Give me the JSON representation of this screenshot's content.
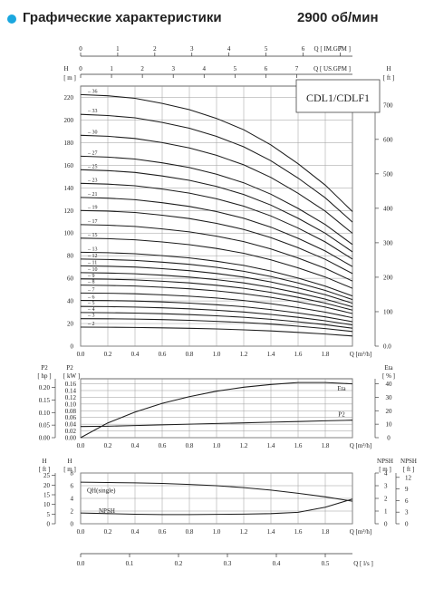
{
  "header": {
    "title": "Графические характеристики",
    "speed": "2900 об/мин",
    "bullet_color": "#1aa7df"
  },
  "model_label": "CDL1/CDLF1",
  "top_axes": {
    "im_gpm": {
      "label": "Q [ IM.GPM ]",
      "ticks": [
        "0",
        "1",
        "2",
        "3",
        "4",
        "5",
        "6",
        "7"
      ]
    },
    "us_gpm": {
      "label": "Q [ US.GPM ]",
      "ticks": [
        "0",
        "1",
        "2",
        "3",
        "4",
        "5",
        "6",
        "7"
      ]
    }
  },
  "bottom_axis": {
    "label": "Q [ l/s ]",
    "ticks": [
      "0.0",
      "0.1",
      "0.2",
      "0.3",
      "0.4",
      "0.5"
    ]
  },
  "chart_data": [
    {
      "type": "line",
      "title": "",
      "xlabel": "Q [m³/h]",
      "ylabel": "H [ m ]",
      "ylabel_right": "H [ ft ]",
      "x_ticks": [
        "0.0",
        "0.2",
        "0.4",
        "0.6",
        "0.8",
        "1.0",
        "1.2",
        "1.4",
        "1.6",
        "1.8",
        "Q [m³/h]"
      ],
      "y_ticks": [
        "0",
        "20",
        "40",
        "60",
        "80",
        "100",
        "120",
        "140",
        "160",
        "180",
        "200",
        "220"
      ],
      "y_ticks_right": [
        "0.0",
        "100",
        "200",
        "300",
        "400",
        "500",
        "600",
        "700"
      ],
      "xlim": [
        0,
        2.0
      ],
      "ylim": [
        0,
        230
      ],
      "grid": true,
      "x": [
        0,
        0.2,
        0.4,
        0.6,
        0.8,
        1.0,
        1.2,
        1.4,
        1.6,
        1.8,
        2.0
      ],
      "shape": [
        1.0,
        0.995,
        0.985,
        0.965,
        0.94,
        0.905,
        0.86,
        0.8,
        0.725,
        0.64,
        0.535
      ],
      "series": [
        {
          "name": "2",
          "h0": 16.8
        },
        {
          "name": "3",
          "h0": 24.3
        },
        {
          "name": "4",
          "h0": 29.7
        },
        {
          "name": "5",
          "h0": 35.1
        },
        {
          "name": "6",
          "h0": 40.5
        },
        {
          "name": "7",
          "h0": 47.0
        },
        {
          "name": "8",
          "h0": 54.0
        },
        {
          "name": "9",
          "h0": 59.5
        },
        {
          "name": "10",
          "h0": 65.0
        },
        {
          "name": "11",
          "h0": 71.0
        },
        {
          "name": "12",
          "h0": 77.0
        },
        {
          "name": "13",
          "h0": 83.0
        },
        {
          "name": "15",
          "h0": 95.5
        },
        {
          "name": "17",
          "h0": 107.5
        },
        {
          "name": "19",
          "h0": 120.0
        },
        {
          "name": "21",
          "h0": 131.5
        },
        {
          "name": "23",
          "h0": 144.0
        },
        {
          "name": "25",
          "h0": 156.0
        },
        {
          "name": "27",
          "h0": 168.0
        },
        {
          "name": "30",
          "h0": 186.5
        },
        {
          "name": "33",
          "h0": 205.0
        },
        {
          "name": "36",
          "h0": 222.5
        }
      ]
    },
    {
      "type": "line",
      "title": "",
      "xlabel": "Q [m³/h]",
      "ylabel": "P2 [ kW ]",
      "ylabel_left": "P2 [ hp ]",
      "ylabel_right": "Eta [ % ]",
      "x_ticks": [
        "0.0",
        "0.2",
        "0.4",
        "0.6",
        "0.8",
        "1.0",
        "1.2",
        "1.4",
        "1.6",
        "1.8",
        "Q [m³/h]"
      ],
      "y_ticks": [
        "0.00",
        "0.02",
        "0.04",
        "0.06",
        "0.08",
        "0.10",
        "0.12",
        "0.14",
        "0.16"
      ],
      "y_ticks_hp": [
        "0.00",
        "0.05",
        "0.10",
        "0.15",
        "0.20"
      ],
      "y_ticks_right": [
        "0",
        "10",
        "20",
        "30",
        "40"
      ],
      "xlim": [
        0,
        2.0
      ],
      "ylim": [
        0,
        0.175
      ],
      "grid": true,
      "x": [
        0,
        0.2,
        0.4,
        0.6,
        0.8,
        1.0,
        1.2,
        1.4,
        1.6,
        1.8,
        2.0
      ],
      "series": [
        {
          "name": "Eta",
          "axis": "right",
          "values": [
            0,
            11,
            19,
            25.5,
            30.5,
            34.5,
            37.5,
            39.5,
            41,
            41,
            40
          ]
        },
        {
          "name": "P2",
          "axis": "left",
          "values": [
            0.033,
            0.034,
            0.036,
            0.038,
            0.04,
            0.042,
            0.044,
            0.046,
            0.048,
            0.05,
            0.052
          ]
        }
      ]
    },
    {
      "type": "line",
      "title": "",
      "xlabel": "Q [m³/h]",
      "ylabel": "H [ m ]",
      "ylabel_left": "H [ ft ]",
      "ylabel_right": "NPSH [ m ]",
      "ylabel_right2": "NPSH [ ft ]",
      "x_ticks": [
        "0.0",
        "0.2",
        "0.4",
        "0.6",
        "0.8",
        "1.0",
        "1.2",
        "1.4",
        "1.6",
        "1.8",
        "Q [m³/h]"
      ],
      "y_ticks": [
        "0",
        "2",
        "4",
        "6",
        "8"
      ],
      "y_ticks_ft": [
        "0",
        "5",
        "10",
        "15",
        "20",
        "25"
      ],
      "y_ticks_right": [
        "0",
        "1",
        "2",
        "3",
        "4"
      ],
      "y_ticks_right2": [
        "0",
        "3",
        "6",
        "9",
        "12"
      ],
      "xlim": [
        0,
        2.0
      ],
      "ylim": [
        0,
        8
      ],
      "grid": true,
      "x": [
        0,
        0.2,
        0.4,
        0.6,
        0.8,
        1.0,
        1.2,
        1.4,
        1.6,
        1.8,
        2.0
      ],
      "series": [
        {
          "name": "QH(single)",
          "axis": "left",
          "values": [
            6.55,
            6.5,
            6.45,
            6.35,
            6.2,
            6.0,
            5.7,
            5.3,
            4.8,
            4.25,
            3.55
          ]
        },
        {
          "name": "NPSH",
          "axis": "right",
          "values": [
            0.85,
            0.8,
            0.75,
            0.72,
            0.72,
            0.74,
            0.76,
            0.8,
            0.9,
            1.3,
            1.95
          ]
        }
      ]
    }
  ]
}
